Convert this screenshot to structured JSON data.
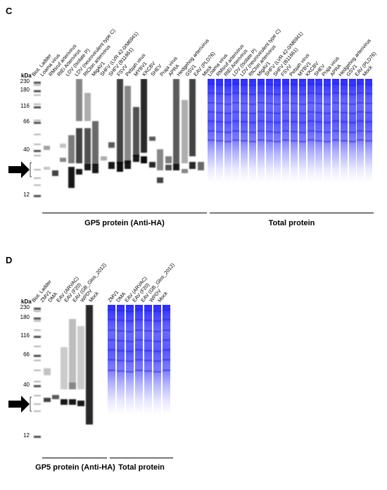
{
  "panel_c": {
    "letter": "C",
    "kda_label": "kDa",
    "mw_markers": [
      "230",
      "180",
      "116",
      "66",
      "40",
      "12"
    ],
    "lanes": [
      "Biot. Ladder",
      "Loama virus",
      "RMsruf arterivirus",
      "RtEi Arterivirus",
      "LDV (Isolate P)",
      "LDV (neurovirulent type C)",
      "RtClon arterivirus",
      "MigAV1",
      "SHFV (LVR 42-0/M6941)",
      "SHFV (B11661)",
      "FSVV",
      "Pebjah virus",
      "MYBV1",
      "KKCBV",
      "SHEV",
      "Praja virus",
      "APRA",
      "Hedgehog arterivirus",
      "GSV1",
      "EAV (PLD76)",
      "Mock"
    ],
    "total_lanes": [
      "Loama virus",
      "RMsruf arterivirus",
      "RtEi Arterivirus",
      "LDV (Isolate P)",
      "LDV (neurovirulent type C)",
      "RtClon arterivirus",
      "MigAV1",
      "SHFV (LVR 42-0/M6941)",
      "SHFV (B11661)",
      "FSVV",
      "Pebjah virus",
      "MYBV1",
      "KKCBV",
      "SHEV",
      "Praja virus",
      "APRA",
      "Hedgehog arterivirus",
      "GSV1",
      "EAV (PLD76)",
      "Mock"
    ],
    "gp5_label": "GP5 protein (Anti-HA)",
    "total_label": "Total protein"
  },
  "panel_d": {
    "letter": "D",
    "kda_label": "kDa",
    "mw_markers": [
      "230",
      "180",
      "116",
      "66",
      "40",
      "12"
    ],
    "lanes": [
      "Biot. Ladder",
      "ZMV1",
      "DMA",
      "EAV (ARVAC)",
      "EAV (F20)",
      "EAV (GB_Glos_2012)",
      "WPDV",
      "Mock"
    ],
    "total_lanes": [
      "ZMV1",
      "DMA",
      "EAV (ARVAC)",
      "EAV (F20)",
      "EAV (GB_Glos_2012)",
      "WPDV",
      "Mock"
    ],
    "gp5_label": "GP5 protein (Anti-HA)",
    "total_label": "Total protein"
  },
  "colors": {
    "total_protein_blue": "#3b3bff",
    "band_black": "#000000"
  }
}
